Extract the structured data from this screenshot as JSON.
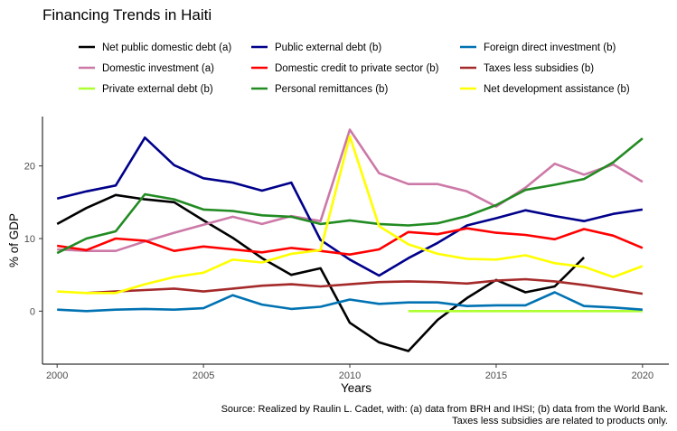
{
  "chart_data": {
    "type": "line",
    "title": "Financing Trends in Haiti",
    "xlabel": "Years",
    "ylabel": "% of GDP",
    "xlim": [
      1999.5,
      2020.9
    ],
    "ylim": [
      -7.3,
      26.8
    ],
    "xticks": [
      2000,
      2005,
      2010,
      2015,
      2020
    ],
    "yticks": [
      0,
      10,
      20
    ],
    "grid": false,
    "legend_position": "top",
    "x": [
      2000,
      2001,
      2002,
      2003,
      2004,
      2005,
      2006,
      2007,
      2008,
      2009,
      2010,
      2011,
      2012,
      2013,
      2014,
      2015,
      2016,
      2017,
      2018,
      2019,
      2020
    ],
    "series": [
      {
        "name": "Net public domestic debt (a)",
        "color": "#000000",
        "values": [
          12.0,
          14.2,
          16.0,
          15.4,
          15.0,
          12.5,
          10.1,
          7.3,
          5.0,
          5.9,
          -1.6,
          -4.3,
          -5.5,
          -1.2,
          1.8,
          4.3,
          2.6,
          3.4,
          7.4,
          null,
          null
        ]
      },
      {
        "name": "Domestic investment (a)",
        "color": "#cc79a7",
        "values": [
          8.5,
          8.3,
          8.3,
          9.6,
          10.8,
          11.9,
          13.0,
          12.0,
          13.1,
          12.4,
          25.0,
          19.0,
          17.5,
          17.5,
          16.5,
          14.4,
          17.0,
          20.3,
          18.8,
          20.2,
          17.8
        ]
      },
      {
        "name": "Private external debt (b)",
        "color": "#adff2f",
        "values": [
          null,
          null,
          null,
          null,
          null,
          null,
          null,
          null,
          null,
          null,
          null,
          null,
          0.0,
          0.0,
          0.0,
          0.0,
          0.0,
          0.0,
          0.0,
          0.0,
          0.0
        ]
      },
      {
        "name": "Public external debt (b)",
        "color": "#00008b",
        "values": [
          15.5,
          16.5,
          17.3,
          23.9,
          20.1,
          18.3,
          17.7,
          16.6,
          17.7,
          9.8,
          7.1,
          4.9,
          7.3,
          9.4,
          11.8,
          12.8,
          13.9,
          13.1,
          12.4,
          13.4,
          14.0
        ]
      },
      {
        "name": "Domestic credit to private sector (b)",
        "color": "#ff0000",
        "values": [
          9.0,
          8.4,
          10.0,
          9.7,
          8.3,
          8.9,
          8.5,
          8.1,
          8.7,
          8.3,
          7.8,
          8.5,
          10.9,
          10.6,
          11.4,
          10.8,
          10.5,
          9.9,
          11.3,
          10.4,
          8.7
        ]
      },
      {
        "name": "Personal remittances (b)",
        "color": "#228b22",
        "values": [
          8.0,
          10.0,
          11.0,
          16.1,
          15.4,
          14.0,
          13.8,
          13.2,
          13.0,
          12.0,
          12.5,
          12.0,
          11.8,
          12.1,
          13.1,
          14.6,
          16.7,
          17.4,
          18.2,
          20.5,
          23.8
        ]
      },
      {
        "name": "Foreign direct investment (b)",
        "color": "#0072b2",
        "values": [
          0.2,
          0.0,
          0.2,
          0.3,
          0.2,
          0.4,
          2.2,
          0.9,
          0.3,
          0.6,
          1.6,
          1.0,
          1.2,
          1.2,
          0.7,
          0.8,
          0.8,
          2.6,
          0.7,
          0.5,
          0.2
        ]
      },
      {
        "name": "Taxes less subsidies (b)",
        "color": "#a52a2a",
        "values": [
          null,
          2.5,
          2.7,
          2.9,
          3.1,
          2.7,
          3.1,
          3.5,
          3.7,
          3.4,
          3.7,
          4.0,
          4.1,
          4.0,
          3.8,
          4.2,
          4.4,
          4.1,
          3.6,
          3.0,
          2.4
        ]
      },
      {
        "name": "Net development assistance (b)",
        "color": "#ffff00",
        "values": [
          2.7,
          2.5,
          2.5,
          3.7,
          4.7,
          5.3,
          7.1,
          6.7,
          7.9,
          8.4,
          24.1,
          11.7,
          9.2,
          7.9,
          7.2,
          7.1,
          7.7,
          6.6,
          6.1,
          4.7,
          6.2
        ]
      }
    ],
    "caption": [
      "Source: Realized by Raulin L. Cadet, with: (a) data from BRH and IHSI; (b) data from the World Bank.",
      "Taxes less subsidies are related to products only."
    ]
  }
}
